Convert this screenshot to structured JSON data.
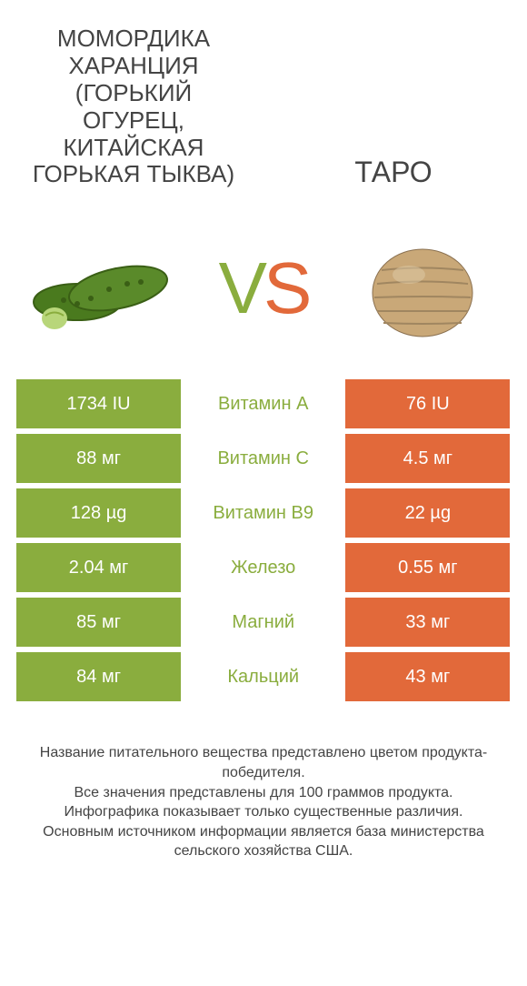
{
  "header": {
    "left_title": "МОМОРДИКА ХАРАНЦИЯ (ГОРЬКИЙ ОГУРЕЦ, КИТАЙСКАЯ ГОРЬКАЯ ТЫКВА)",
    "right_title": "ТАРО"
  },
  "vs": {
    "v": "V",
    "s": "S"
  },
  "colors": {
    "left_fill": "#8aad3e",
    "right_fill": "#e2693a",
    "mid_text_left_win": "#8aad3e",
    "mid_text_right_win": "#e2693a",
    "row_text": "#ffffff"
  },
  "rows": [
    {
      "left": "1734 IU",
      "label": "Витамин A",
      "right": "76 IU",
      "winner": "left"
    },
    {
      "left": "88 мг",
      "label": "Витамин C",
      "right": "4.5 мг",
      "winner": "left"
    },
    {
      "left": "128 µg",
      "label": "Витамин B9",
      "right": "22 µg",
      "winner": "left"
    },
    {
      "left": "2.04 мг",
      "label": "Железо",
      "right": "0.55 мг",
      "winner": "left"
    },
    {
      "left": "85 мг",
      "label": "Магний",
      "right": "33 мг",
      "winner": "left"
    },
    {
      "left": "84 мг",
      "label": "Кальций",
      "right": "43 мг",
      "winner": "left"
    }
  ],
  "footer": {
    "line1": "Название питательного вещества представлено цветом продукта-победителя.",
    "line2": "Все значения представлены для 100 граммов продукта.",
    "line3": "Инфографика показывает только существенные различия.",
    "line4": "Основным источником информации является база министерства сельского хозяйства США."
  },
  "icons": {
    "left_alt": "bitter-melon-icon",
    "right_alt": "taro-icon"
  }
}
